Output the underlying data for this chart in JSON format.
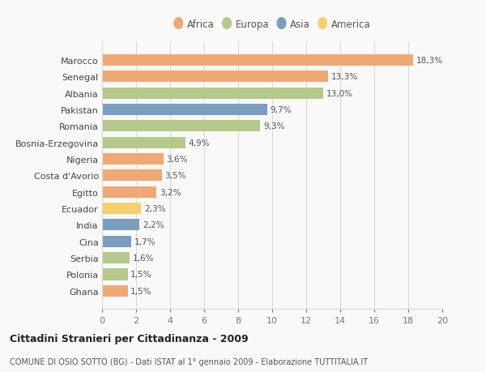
{
  "countries": [
    "Marocco",
    "Senegal",
    "Albania",
    "Pakistan",
    "Romania",
    "Bosnia-Erzegovina",
    "Nigeria",
    "Costa d'Avorio",
    "Egitto",
    "Ecuador",
    "India",
    "Cina",
    "Serbia",
    "Polonia",
    "Ghana"
  ],
  "values": [
    18.3,
    13.3,
    13.0,
    9.7,
    9.3,
    4.9,
    3.6,
    3.5,
    3.2,
    2.3,
    2.2,
    1.7,
    1.6,
    1.5,
    1.5
  ],
  "continents": [
    "Africa",
    "Africa",
    "Europa",
    "Asia",
    "Europa",
    "Europa",
    "Africa",
    "Africa",
    "Africa",
    "America",
    "Asia",
    "Asia",
    "Europa",
    "Europa",
    "Africa"
  ],
  "colors": {
    "Africa": "#F0A875",
    "Europa": "#B5C98A",
    "Asia": "#7B9DC0",
    "America": "#F5D070"
  },
  "legend_order": [
    "Africa",
    "Europa",
    "Asia",
    "America"
  ],
  "xlim": [
    0,
    20
  ],
  "xticks": [
    0,
    2,
    4,
    6,
    8,
    10,
    12,
    14,
    16,
    18,
    20
  ],
  "title": "Cittadini Stranieri per Cittadinanza - 2009",
  "subtitle": "COMUNE DI OSIO SOTTO (BG) - Dati ISTAT al 1° gennaio 2009 - Elaborazione TUTTITALIA.IT",
  "background_color": "#f9f9f9",
  "grid_color": "#d8d8d8"
}
